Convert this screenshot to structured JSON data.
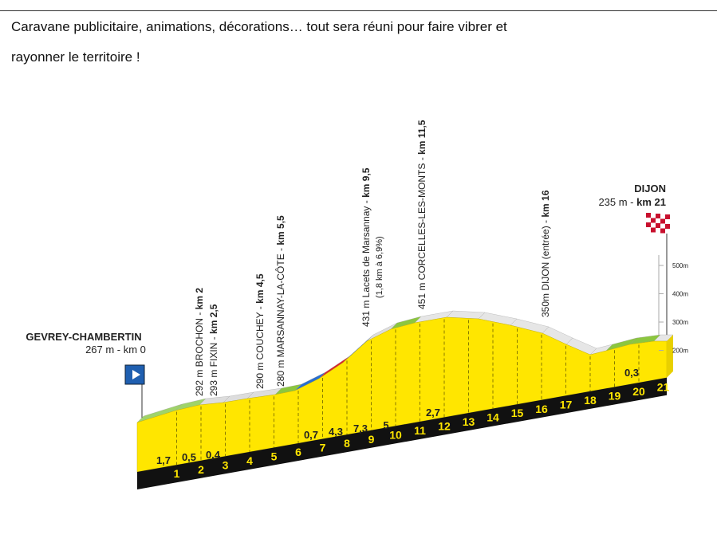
{
  "intro": {
    "lines": [
      "Caravane publicitaire, animations, décorations… tout sera réuni pour faire vibrer et",
      "rayonner le territoire !"
    ]
  },
  "profile": {
    "start": {
      "name": "GEVREY-CHAMBERTIN",
      "detail": "267 m - km 0"
    },
    "finish": {
      "name": "DIJON",
      "detail": "235 m - ",
      "km": "km 21"
    },
    "waypoints": [
      {
        "label": "292 m BROCHON - ",
        "km": "km 2"
      },
      {
        "label": "293 m FIXIN - ",
        "km": "km 2,5"
      },
      {
        "label": "290 m COUCHEY - ",
        "km": "km 4,5"
      },
      {
        "label": "280 m MARSANNAY-LA-CÔTE - ",
        "km": "km 5,5"
      },
      {
        "label": "431 m Lacets de Marsannay - ",
        "km": "km 9,5",
        "note": "(1,8 km à 6,9%)"
      },
      {
        "label": "451 m CORCELLES-LES-MONTS - ",
        "km": "km 11,5"
      },
      {
        "label": "350m DIJON (entrée) - ",
        "km": "km 16"
      }
    ],
    "gradients": [
      "1,7",
      "0,5",
      "0,4",
      "0,7",
      "4,3",
      "7,3",
      "5",
      "2,7",
      "0,3"
    ],
    "km_marks": [
      "1",
      "2",
      "3",
      "4",
      "5",
      "6",
      "7",
      "8",
      "9",
      "10",
      "11",
      "12",
      "13",
      "14",
      "15",
      "16",
      "17",
      "18",
      "19",
      "20",
      "21"
    ],
    "altitude_scale": [
      "500m",
      "400m",
      "300m",
      "200m"
    ]
  }
}
